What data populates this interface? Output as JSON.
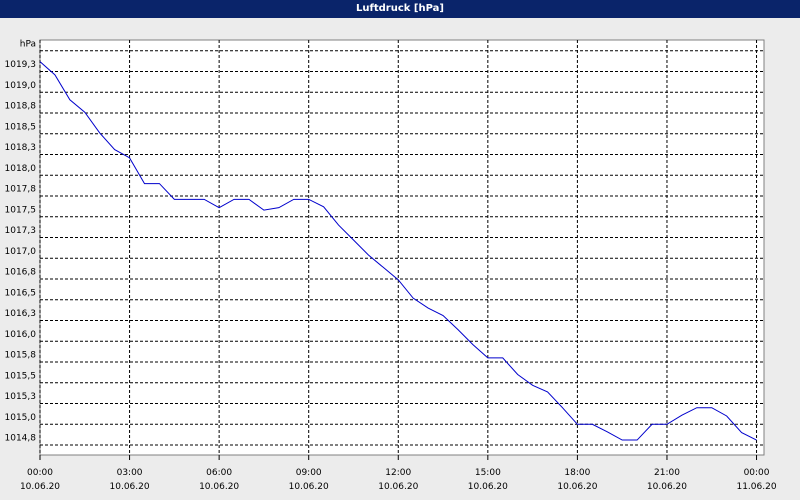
{
  "chart_data": {
    "type": "line",
    "title": "Luftdruck [hPa]",
    "x": [
      0,
      0.5,
      1,
      1.5,
      2,
      2.5,
      3,
      3.5,
      4,
      4.5,
      5,
      5.5,
      6,
      6.5,
      7,
      7.5,
      8,
      8.5,
      9,
      9.5,
      10,
      10.5,
      11,
      11.5,
      12,
      12.5,
      13,
      13.5,
      14,
      14.5,
      15,
      15.5,
      16,
      16.5,
      17,
      17.5,
      18,
      18.5,
      19,
      19.5,
      20,
      20.5,
      21,
      21.5,
      22,
      22.5,
      23,
      23.5,
      24
    ],
    "series": [
      {
        "color": "#0000cc",
        "values": [
          1019.37,
          1019.21,
          1018.91,
          1018.76,
          1018.51,
          1018.31,
          1018.21,
          1017.9,
          1017.9,
          1017.71,
          1017.71,
          1017.71,
          1017.61,
          1017.71,
          1017.71,
          1017.58,
          1017.61,
          1017.71,
          1017.71,
          1017.62,
          1017.4,
          1017.22,
          1017.04,
          1016.89,
          1016.74,
          1016.52,
          1016.4,
          1016.31,
          1016.14,
          1015.96,
          1015.8,
          1015.8,
          1015.6,
          1015.47,
          1015.39,
          1015.2,
          1015.0,
          1015.0,
          1014.91,
          1014.81,
          1014.81,
          1015.0,
          1015.0,
          1015.11,
          1015.2,
          1015.2,
          1015.1,
          1014.9,
          1014.81
        ]
      }
    ],
    "xlim": [
      0,
      24.25
    ],
    "ylim": [
      1014.63,
      1019.63
    ],
    "xticks": [
      {
        "value": 0,
        "label": "00:00\n10.06.20"
      },
      {
        "value": 3,
        "label": "03:00\n10.06.20"
      },
      {
        "value": 6,
        "label": "06:00\n10.06.20"
      },
      {
        "value": 9,
        "label": "09:00\n10.06.20"
      },
      {
        "value": 12,
        "label": "12:00\n10.06.20"
      },
      {
        "value": 15,
        "label": "15:00\n10.06.20"
      },
      {
        "value": 18,
        "label": "18:00\n10.06.20"
      },
      {
        "value": 21,
        "label": "21:00\n10.06.20"
      },
      {
        "value": 24,
        "label": "00:00\n11.06.20"
      }
    ],
    "yticks": [
      {
        "value": 1014.75,
        "label": "1014,8"
      },
      {
        "value": 1015.0,
        "label": "1015,0"
      },
      {
        "value": 1015.25,
        "label": "1015,3"
      },
      {
        "value": 1015.5,
        "label": "1015,5"
      },
      {
        "value": 1015.75,
        "label": "1015,8"
      },
      {
        "value": 1016.0,
        "label": "1016,0"
      },
      {
        "value": 1016.25,
        "label": "1016,3"
      },
      {
        "value": 1016.5,
        "label": "1016,5"
      },
      {
        "value": 1016.75,
        "label": "1016,8"
      },
      {
        "value": 1017.0,
        "label": "1017,0"
      },
      {
        "value": 1017.25,
        "label": "1017,3"
      },
      {
        "value": 1017.5,
        "label": "1017,5"
      },
      {
        "value": 1017.75,
        "label": "1017,8"
      },
      {
        "value": 1018.0,
        "label": "1018,0"
      },
      {
        "value": 1018.25,
        "label": "1018,3"
      },
      {
        "value": 1018.5,
        "label": "1018,5"
      },
      {
        "value": 1018.75,
        "label": "1018,8"
      },
      {
        "value": 1019.0,
        "label": "1019,0"
      },
      {
        "value": 1019.25,
        "label": "1019,3"
      },
      {
        "value": 1019.5,
        "label": "hPa"
      }
    ],
    "grid": true
  }
}
